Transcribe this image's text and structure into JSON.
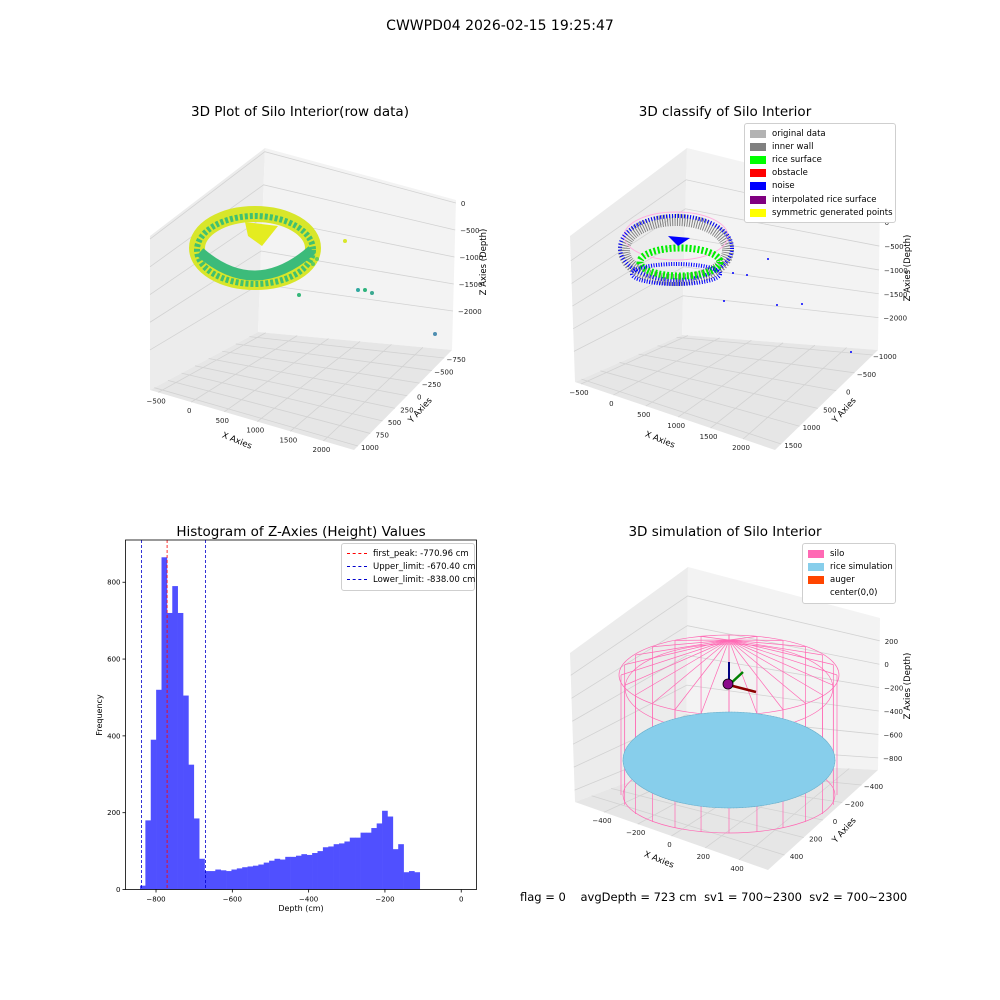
{
  "suptitle": "CWWPD04 2026-02-15 19:25:47",
  "colors": {
    "raw_low": "#2db37a",
    "raw_high": "#f2f20a",
    "hist_bar": "#5050ff",
    "peak_line": "#ff0000",
    "limit_line": "#0000cc"
  },
  "chart_data": [
    {
      "type": "scatter",
      "chart_kind": "3d-scatter",
      "title": "3D Plot of Silo Interior(row data)",
      "xlabel": "X Axies",
      "ylabel": "Y Axies",
      "zlabel": "Z Axies (Depth)",
      "x_ticks": [
        "-500",
        "0",
        "500",
        "1000",
        "1500",
        "2000"
      ],
      "y_ticks": [
        "-750",
        "-500",
        "-250",
        "0",
        "250",
        "500",
        "750",
        "1000"
      ],
      "z_ticks": [
        "0",
        "-500",
        "-1000",
        "-1500",
        "-2000"
      ],
      "colormap": "viridis (green → yellow)"
    },
    {
      "type": "scatter",
      "chart_kind": "3d-scatter-classified",
      "title": "3D classify of Silo Interior",
      "xlabel": "X Axies",
      "ylabel": "Y Axies",
      "zlabel": "Z Axies (Depth)",
      "x_ticks": [
        "-500",
        "0",
        "500",
        "1000",
        "1500",
        "2000"
      ],
      "y_ticks": [
        "-1000",
        "-500",
        "0",
        "500",
        "1000",
        "1500"
      ],
      "z_ticks": [
        "0",
        "-500",
        "-1000",
        "-1500",
        "-2000"
      ],
      "legend": [
        {
          "label": "original data",
          "color": "#b3b3b3"
        },
        {
          "label": "inner wall",
          "color": "#808080"
        },
        {
          "label": "rice surface",
          "color": "#00ff00"
        },
        {
          "label": "obstacle",
          "color": "#ff0000"
        },
        {
          "label": "noise",
          "color": "#0000ff"
        },
        {
          "label": "interpolated rice surface",
          "color": "#800080"
        },
        {
          "label": "symmetric generated points",
          "color": "#ffff00"
        }
      ],
      "legend_placement": "upper-right"
    },
    {
      "type": "bar",
      "chart_kind": "histogram",
      "title": "Histogram of Z-Axies (Height) Values",
      "xlabel": "Depth (cm)",
      "ylabel": "Frequency",
      "xlim": [
        -880,
        40
      ],
      "ylim": [
        0,
        910
      ],
      "x_ticks": [
        -800,
        -600,
        -400,
        -200,
        0
      ],
      "y_ticks": [
        0,
        200,
        400,
        600,
        800
      ],
      "bin_start": -842,
      "bin_width": 14.1,
      "counts": [
        10,
        180,
        390,
        520,
        865,
        720,
        790,
        720,
        505,
        325,
        185,
        80,
        48,
        48,
        52,
        50,
        48,
        52,
        55,
        58,
        60,
        62,
        65,
        70,
        75,
        80,
        78,
        85,
        85,
        88,
        92,
        90,
        95,
        100,
        110,
        112,
        118,
        120,
        125,
        135,
        135,
        148,
        148,
        160,
        172,
        205,
        190,
        105,
        118,
        45,
        48,
        45
      ],
      "vlines": [
        {
          "name": "first_peak",
          "value": -770.96,
          "label": "first_peak: -770.96 cm",
          "color": "#ff0000"
        },
        {
          "name": "Upper_limit",
          "value": -670.4,
          "label": "Upper_limit: -670.40 cm",
          "color": "#0000cc"
        },
        {
          "name": "Lower_limit",
          "value": -838.0,
          "label": "Lower_limit: -838.00 cm",
          "color": "#0000cc"
        }
      ],
      "legend_placement": "upper-right",
      "grid": false
    },
    {
      "type": "scatter",
      "chart_kind": "3d-simulation",
      "title": "3D simulation of Silo Interior",
      "xlabel": "X Axies",
      "ylabel": "Y Axies",
      "zlabel": "Z Axies (Depth)",
      "x_ticks": [
        "-400",
        "-200",
        "0",
        "200",
        "400"
      ],
      "y_ticks": [
        "-400",
        "-200",
        "0",
        "200",
        "400"
      ],
      "z_ticks": [
        "200",
        "0",
        "-200",
        "-400",
        "-600",
        "-800"
      ],
      "legend": [
        {
          "label": "silo",
          "color": "#ff69b4"
        },
        {
          "label": "rice simulation",
          "color": "#87ceeb"
        },
        {
          "label": "auger",
          "color": "#ff4500"
        },
        {
          "label": "center(0,0)",
          "color": ""
        }
      ],
      "legend_placement": "upper-right"
    }
  ],
  "status": {
    "flag": "flag = 0",
    "avg_depth": "avgDepth = 723 cm",
    "sv1": "sv1 = 700~2300",
    "sv2": "sv2 = 700~2300"
  }
}
